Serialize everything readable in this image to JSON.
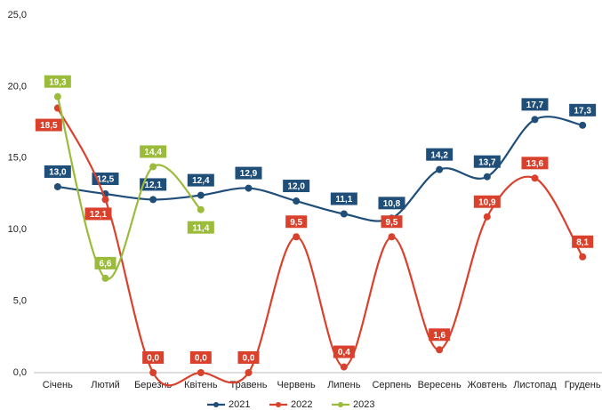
{
  "chart_data": {
    "type": "line",
    "categories": [
      "Січень",
      "Лютий",
      "Березнь",
      "Квітень",
      "Травень",
      "Червень",
      "Липень",
      "Серпень",
      "Вересень",
      "Жовтень",
      "Листопад",
      "Грудень"
    ],
    "series": [
      {
        "name": "2021",
        "color": "#1f4e79",
        "values": [
          13.0,
          12.5,
          12.1,
          12.4,
          12.9,
          12.0,
          11.1,
          10.8,
          14.2,
          13.7,
          17.7,
          17.3
        ],
        "value_labels": [
          "13,0",
          "12,5",
          "12,1",
          "12,4",
          "12,9",
          "12,0",
          "11,1",
          "10,8",
          "14,2",
          "13,7",
          "17,7",
          "17,3"
        ]
      },
      {
        "name": "2022",
        "color": "#d9412c",
        "values": [
          18.5,
          12.1,
          0.0,
          0.0,
          0.0,
          9.5,
          0.4,
          9.5,
          1.6,
          10.9,
          13.6,
          8.1
        ],
        "value_labels": [
          "18,5",
          "12,1",
          "0,0",
          "0,0",
          "0,0",
          "9,5",
          "0,4",
          "9,5",
          "1,6",
          "10,9",
          "13,6",
          "8,1"
        ]
      },
      {
        "name": "2023",
        "color": "#9bbb3b",
        "values": [
          19.3,
          6.6,
          14.4,
          11.4,
          null,
          null,
          null,
          null,
          null,
          null,
          null,
          null
        ],
        "value_labels": [
          "19,3",
          "6,6",
          "14,4",
          "11,4",
          null,
          null,
          null,
          null,
          null,
          null,
          null,
          null
        ]
      }
    ],
    "ylim": [
      0,
      25
    ],
    "yticks": [
      {
        "value": 0,
        "label": "0,0"
      },
      {
        "value": 5,
        "label": "5,0"
      },
      {
        "value": 10,
        "label": "10,0"
      },
      {
        "value": 15,
        "label": "15,0"
      },
      {
        "value": 20,
        "label": "20,0"
      },
      {
        "value": 25,
        "label": "25,0"
      }
    ],
    "grid": false,
    "legend": "bottom"
  }
}
